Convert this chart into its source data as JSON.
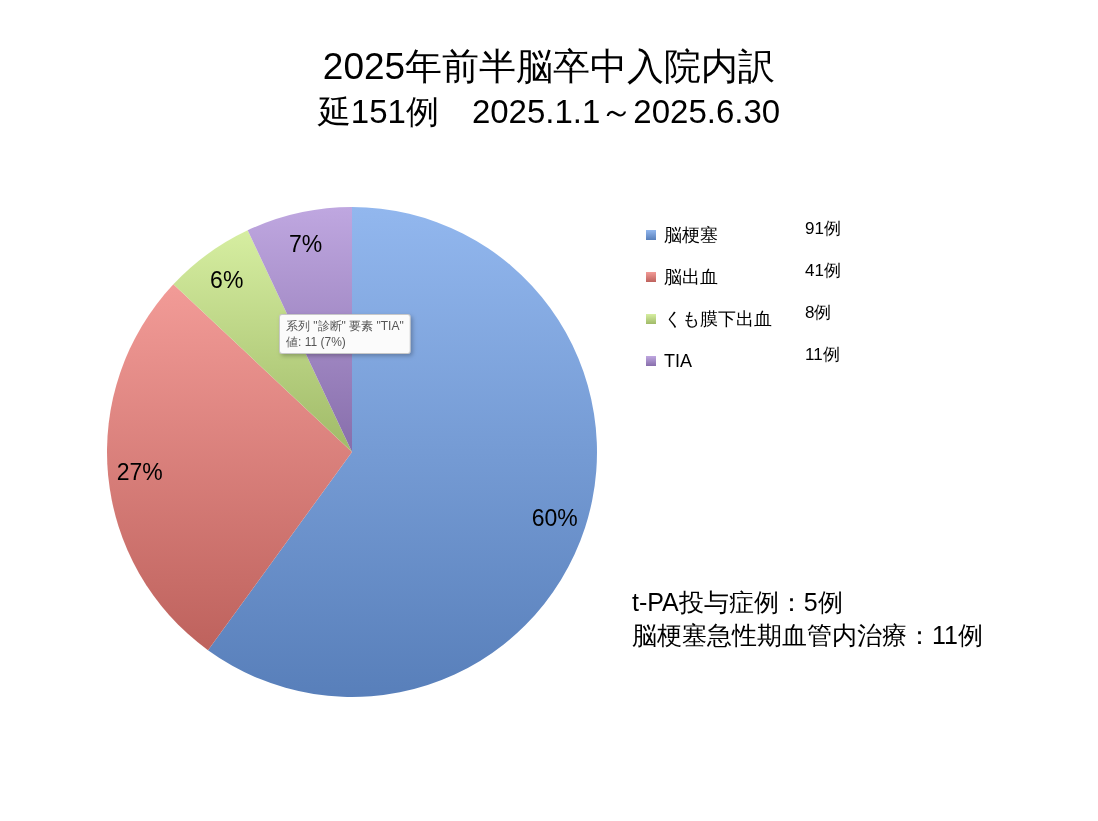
{
  "chart_data": {
    "type": "pie",
    "title": "2025年前半脳卒中入院内訳",
    "subtitle": "延151例　2025.1.1～2025.6.30",
    "categories": [
      "脳梗塞",
      "脳出血",
      "くも膜下出血",
      "TIA"
    ],
    "values": [
      60,
      27,
      6,
      7
    ],
    "colors": [
      "#6e9fe8",
      "#ee7a74",
      "#c8e882",
      "#a98ad6"
    ],
    "value_labels": [
      "60%",
      "27%",
      "6%",
      "7%"
    ],
    "legend": "right",
    "annotations": [
      "91例",
      "41例",
      "8例",
      "11例",
      "系列 \"診断\" 要素 \"TIA\"\n値: 11 (7%)",
      "t-PA投与症例：5例",
      "脳梗塞急性期血管内治療：11例"
    ]
  }
}
